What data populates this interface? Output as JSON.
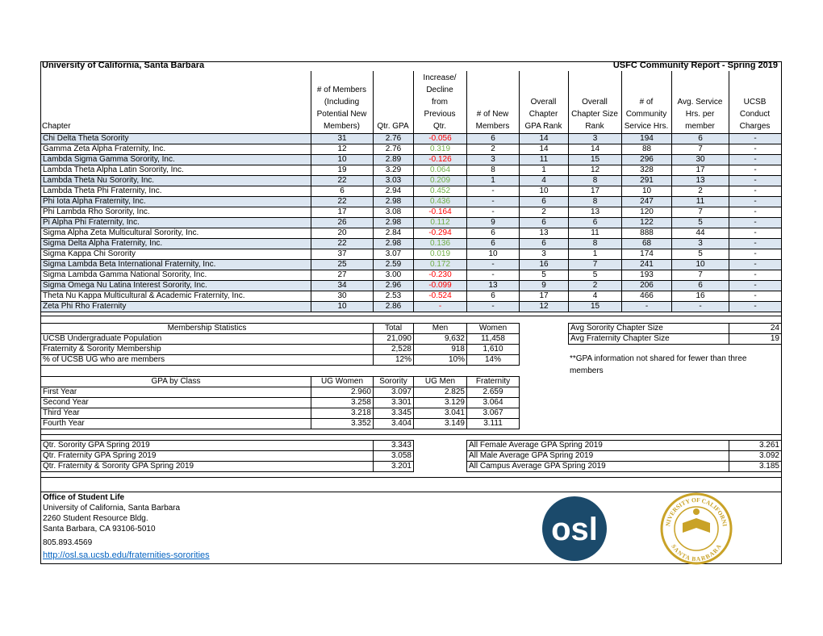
{
  "header": {
    "left_title": "University of California, Santa Barbara",
    "right_title": "USFC Community Report - Spring 2019"
  },
  "chapters": {
    "columns": [
      [
        "Chapter"
      ],
      [
        "# of Members",
        "(Including",
        "Potential New",
        "Members)"
      ],
      [
        "Qtr. GPA"
      ],
      [
        "Increase/",
        "Decline",
        "from",
        "Previous",
        "Qtr."
      ],
      [
        "# of New",
        "Members"
      ],
      [
        "Overall",
        "Chapter",
        "GPA Rank"
      ],
      [
        "Overall",
        "Chapter Size",
        "Rank"
      ],
      [
        "# of",
        "Community",
        "Service Hrs."
      ],
      [
        "Avg. Service",
        "Hrs. per",
        "member"
      ],
      [
        "UCSB",
        "Conduct",
        "Charges"
      ]
    ],
    "rows": [
      [
        "Chi Delta Theta Sorority",
        "31",
        "2.76",
        "-0.056",
        "6",
        "14",
        "3",
        "194",
        "6",
        "-"
      ],
      [
        "Gamma Zeta Alpha Fraternity, Inc.",
        "12",
        "2.76",
        "0.319",
        "2",
        "14",
        "14",
        "88",
        "7",
        "-"
      ],
      [
        "Lambda Sigma Gamma Sorority, Inc.",
        "10",
        "2.89",
        "-0.126",
        "3",
        "11",
        "15",
        "296",
        "30",
        "-"
      ],
      [
        "Lambda Theta Alpha Latin Sorority, Inc.",
        "19",
        "3.29",
        "0.064",
        "8",
        "1",
        "12",
        "328",
        "17",
        "-"
      ],
      [
        "Lambda Theta Nu Sorority, Inc.",
        "22",
        "3.03",
        "0.209",
        "1",
        "4",
        "8",
        "291",
        "13",
        "-"
      ],
      [
        "Lambda Theta Phi Fraternity, Inc.",
        "6",
        "2.94",
        "0.452",
        "-",
        "10",
        "17",
        "10",
        "2",
        "-"
      ],
      [
        "Phi Iota Alpha Fraternity, Inc.",
        "22",
        "2.98",
        "0.436",
        "-",
        "6",
        "8",
        "247",
        "11",
        "-"
      ],
      [
        "Phi Lambda Rho Sorority, Inc.",
        "17",
        "3.08",
        "-0.164",
        "-",
        "2",
        "13",
        "120",
        "7",
        "-"
      ],
      [
        "Pi Alpha Phi Fraternity, Inc.",
        "26",
        "2.98",
        "0.112",
        "9",
        "6",
        "6",
        "122",
        "5",
        "-"
      ],
      [
        "Sigma Alpha Zeta Multicultural Sorority, Inc.",
        "20",
        "2.84",
        "-0.294",
        "6",
        "13",
        "11",
        "888",
        "44",
        "-"
      ],
      [
        "Sigma Delta Alpha Fraternity, Inc.",
        "22",
        "2.98",
        "0.136",
        "6",
        "6",
        "8",
        "68",
        "3",
        "-"
      ],
      [
        "Sigma Kappa Chi Sorority",
        "37",
        "3.07",
        "0.019",
        "10",
        "3",
        "1",
        "174",
        "5",
        "-"
      ],
      [
        "Sigma Lambda Beta International Fraternity, Inc.",
        "25",
        "2.59",
        "0.172",
        "-",
        "16",
        "7",
        "241",
        "10",
        "-"
      ],
      [
        "Sigma Lambda Gamma National Sorority, Inc.",
        "27",
        "3.00",
        "-0.230",
        "-",
        "5",
        "5",
        "193",
        "7",
        "-"
      ],
      [
        "Sigma Omega Nu Latina Interest Sorority, Inc.",
        "34",
        "2.96",
        "-0.099",
        "13",
        "9",
        "2",
        "206",
        "6",
        "-"
      ],
      [
        "Theta Nu Kappa Multicultural & Academic Fraternity, Inc.",
        "30",
        "2.53",
        "-0.524",
        "6",
        "17",
        "4",
        "466",
        "16",
        "-"
      ],
      [
        "Zeta Phi Rho Fraternity",
        "10",
        "2.86",
        "-",
        "-",
        "12",
        "15",
        "-",
        "-",
        "-"
      ]
    ]
  },
  "membership": {
    "columns": [
      "Membership Statistics",
      "Total",
      "Men",
      "Women"
    ],
    "rows": [
      [
        "UCSB Undergraduate Population",
        "21,090",
        "9,632",
        "11,458"
      ],
      [
        "Fraternity & Sorority Membership",
        "2,528",
        "918",
        "1,610"
      ],
      [
        "% of UCSB UG who are members",
        "12%",
        "10%",
        "14%"
      ]
    ]
  },
  "chapter_size": {
    "rows": [
      [
        "Avg Sorority Chapter Size",
        "24"
      ],
      [
        "Avg Fraternity Chapter Size",
        "19"
      ]
    ]
  },
  "note": "**GPA information not shared for fewer than three members",
  "gpa_by_class": {
    "columns": [
      "GPA by Class",
      "UG Women",
      "Sorority",
      "UG Men",
      "Fraternity"
    ],
    "rows": [
      [
        "First Year",
        "2.960",
        "3.097",
        "2.825",
        "2.659"
      ],
      [
        "Second Year",
        "3.258",
        "3.301",
        "3.129",
        "3.064"
      ],
      [
        "Third Year",
        "3.218",
        "3.345",
        "3.041",
        "3.067"
      ],
      [
        "Fourth Year",
        "3.352",
        "3.404",
        "3.149",
        "3.111"
      ]
    ]
  },
  "quarter_gpa": {
    "rows": [
      [
        "Qtr. Sorority GPA Spring 2019",
        "3.343"
      ],
      [
        "Qtr. Fraternity GPA Spring 2019",
        "3.058"
      ],
      [
        "Qtr. Fraternity & Sorority GPA Spring 2019",
        "3.201"
      ]
    ]
  },
  "campus_gpa": {
    "rows": [
      [
        "All Female Average GPA Spring 2019",
        "3.261"
      ],
      [
        "All Male Average GPA Spring 2019",
        "3.092"
      ],
      [
        "All Campus Average GPA Spring 2019",
        "3.185"
      ]
    ]
  },
  "footer": {
    "office": "Office of Student Life",
    "lines": [
      "University of California, Santa Barbara",
      "2260 Student Resource Bldg.",
      "Santa Barbara, CA 93106-5010",
      "805.893.4569"
    ],
    "link": "http://osl.sa.ucsb.edu/fraternities-sororities"
  },
  "logo": {
    "text": "osl"
  },
  "seal": {
    "top": "UNIVERSITY OF CALIFORNIA",
    "bottom": "SANTA BARBARA"
  }
}
